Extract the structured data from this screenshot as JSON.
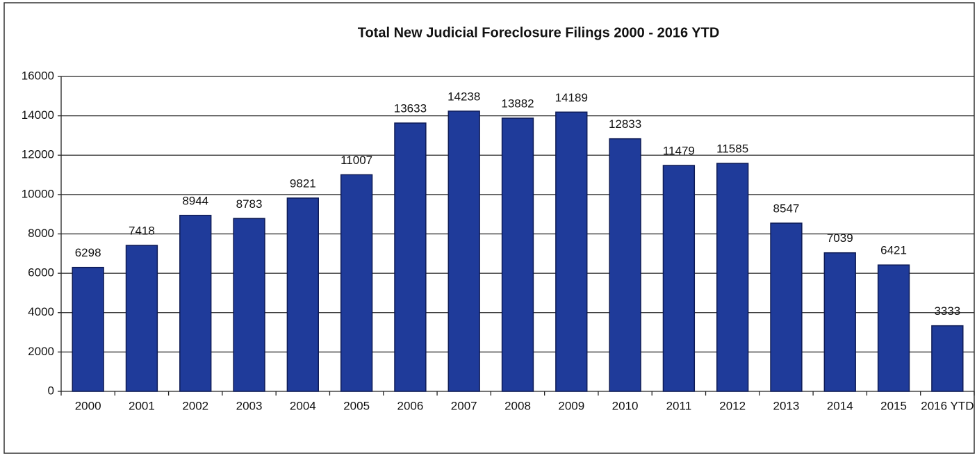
{
  "chart_data": {
    "type": "bar",
    "title": "Total New Judicial Foreclosure Filings 2000 - 2016 YTD",
    "categories": [
      "2000",
      "2001",
      "2002",
      "2003",
      "2004",
      "2005",
      "2006",
      "2007",
      "2008",
      "2009",
      "2010",
      "2011",
      "2012",
      "2013",
      "2014",
      "2015",
      "2016 YTD"
    ],
    "values": [
      6298,
      7418,
      8944,
      8783,
      9821,
      11007,
      13633,
      14238,
      13882,
      14189,
      12833,
      11479,
      11585,
      8547,
      7039,
      6421,
      3333
    ],
    "color": "#1f3b9a",
    "ylim": [
      0,
      16000
    ],
    "yticks": [
      0,
      2000,
      4000,
      6000,
      8000,
      10000,
      12000,
      14000,
      16000
    ],
    "grid": true
  }
}
